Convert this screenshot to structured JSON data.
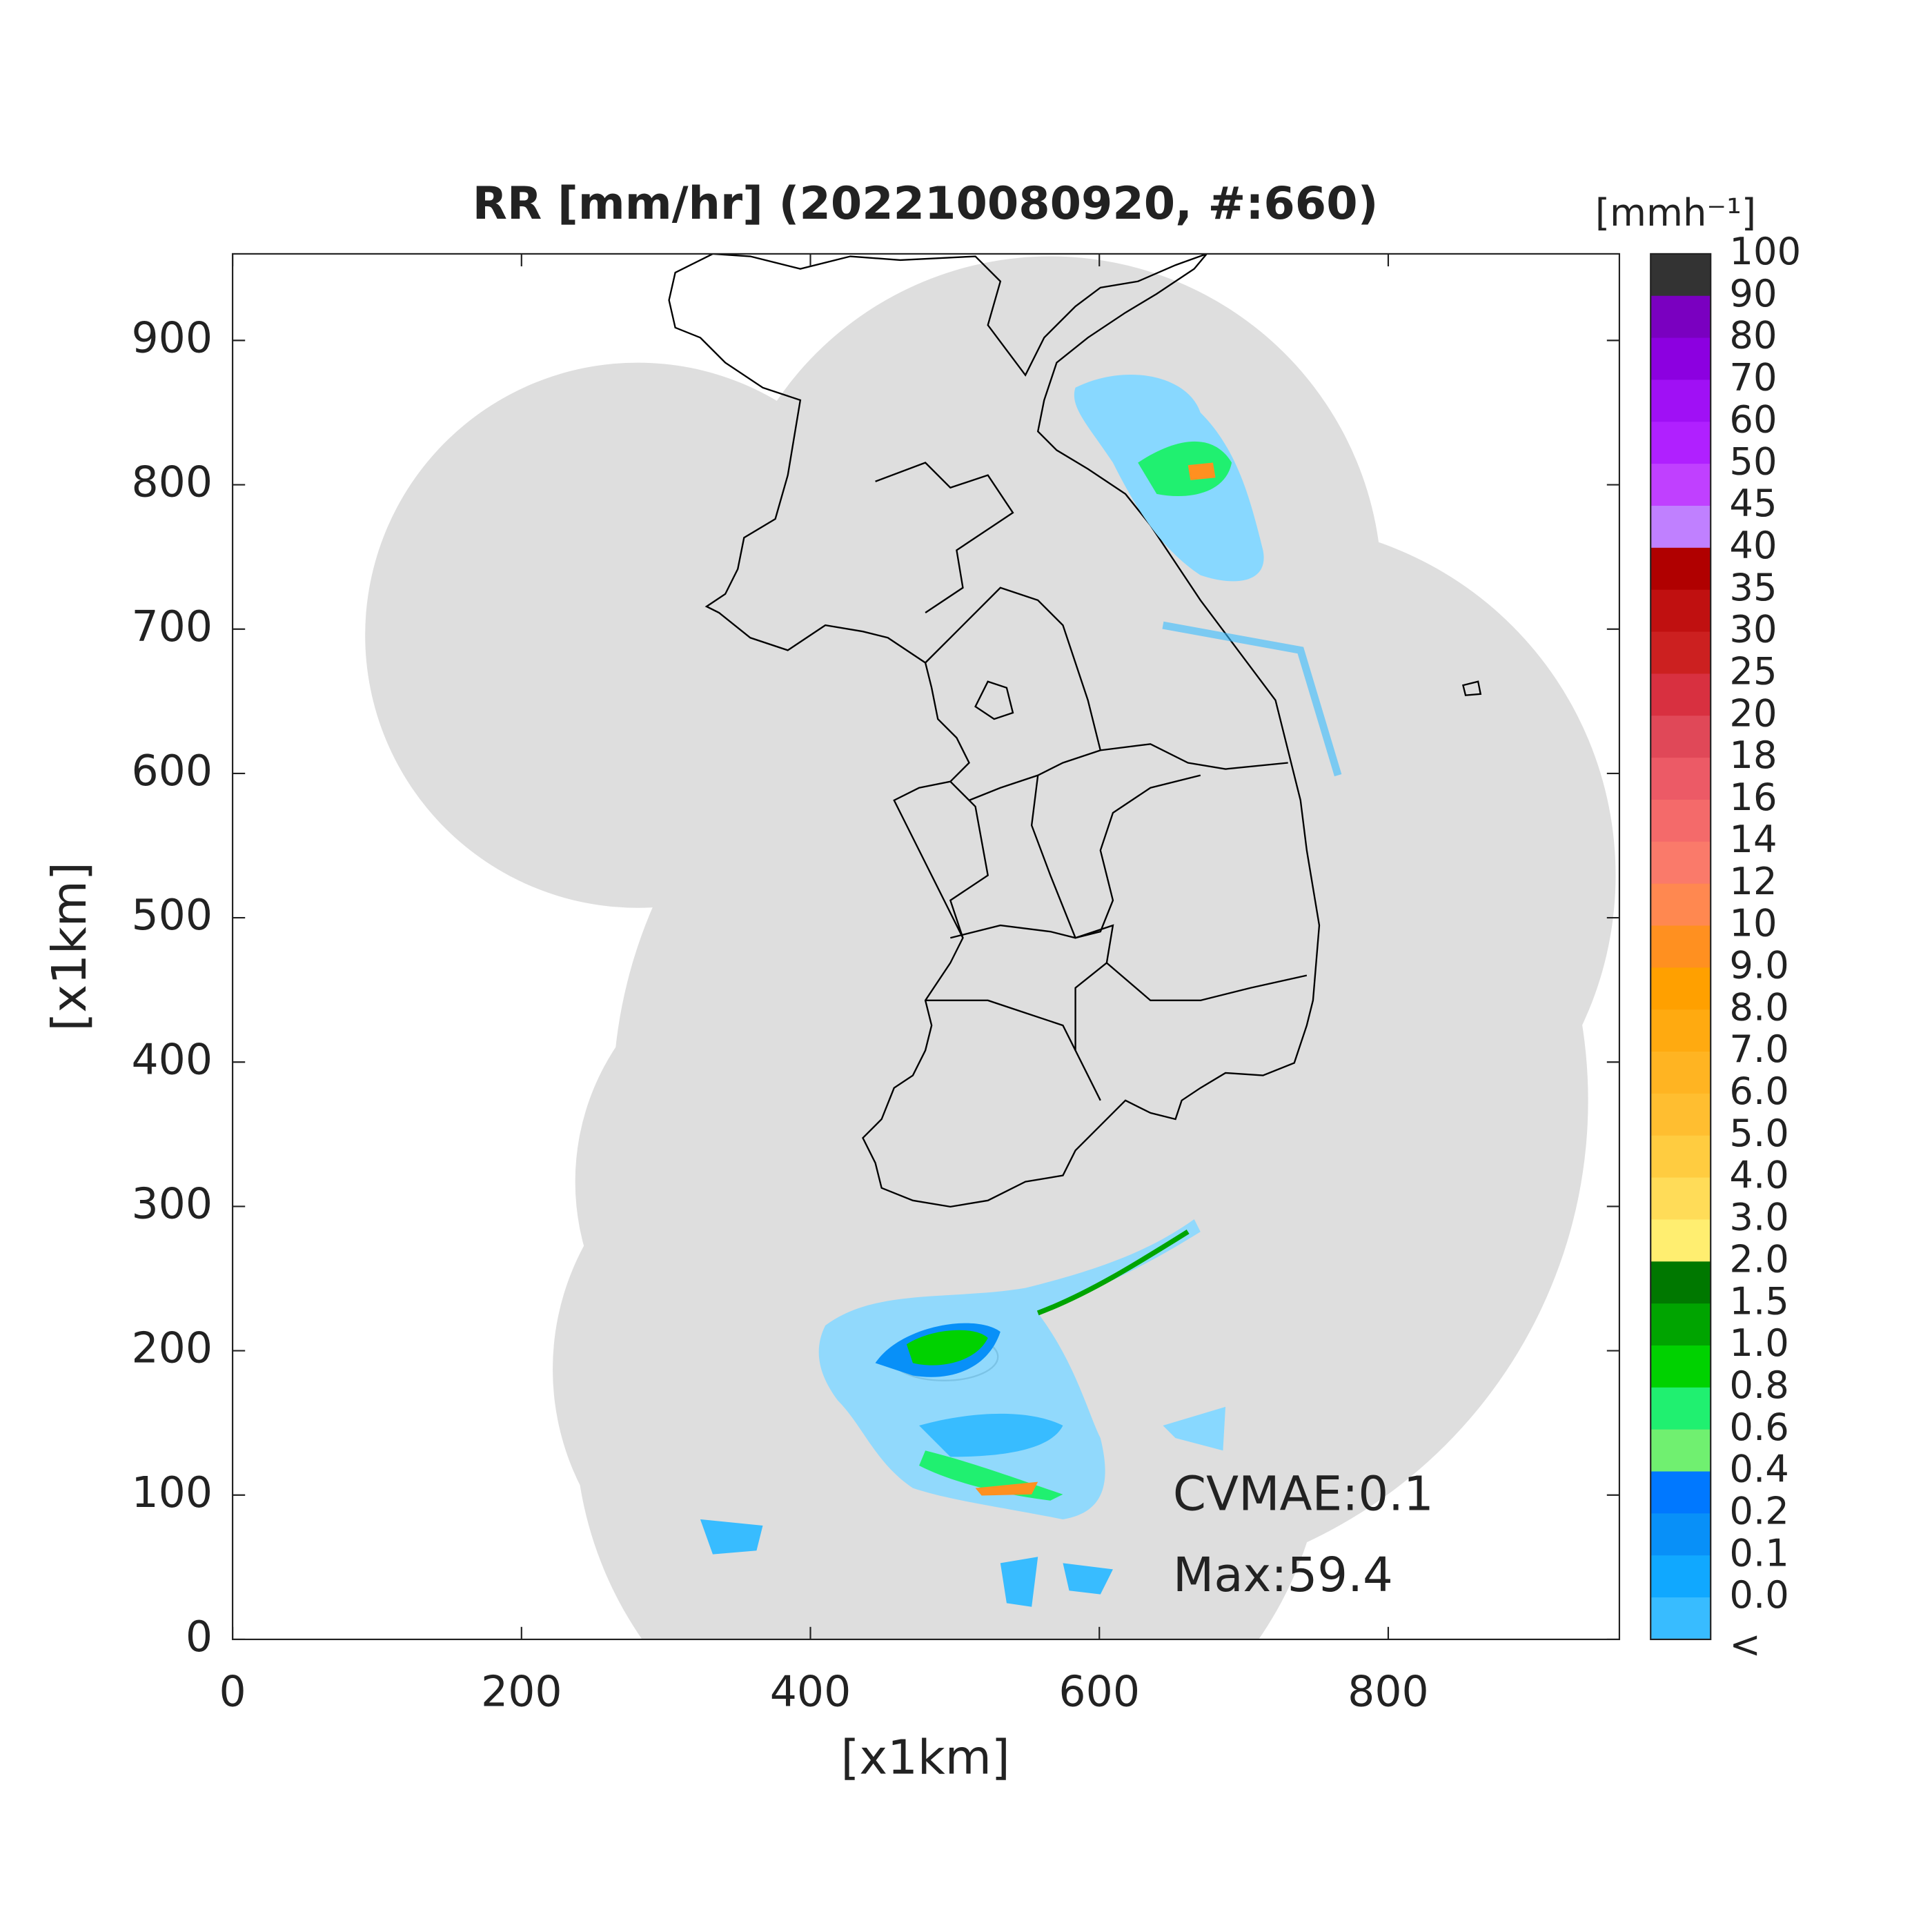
{
  "title": "RR [mm/hr] (202210080920, #:660)",
  "x_axis": {
    "label": "[x1km]",
    "lim": [
      0,
      960
    ],
    "ticks": [
      0,
      200,
      400,
      600,
      800
    ]
  },
  "y_axis": {
    "label": "[x1km]",
    "lim": [
      0,
      960
    ],
    "ticks": [
      0,
      100,
      200,
      300,
      400,
      500,
      600,
      700,
      800,
      900
    ]
  },
  "colorbar": {
    "unit_label": "[mmh⁻¹]",
    "labels": [
      "100",
      "90",
      "80",
      "70",
      "60",
      "50",
      "45",
      "40",
      "35",
      "30",
      "25",
      "20",
      "18",
      "16",
      "14",
      "12",
      "10",
      "9.0",
      "8.0",
      "7.0",
      "6.0",
      "5.0",
      "4.0",
      "3.0",
      "2.0",
      "1.5",
      "1.0",
      "0.8",
      "0.6",
      "0.4",
      "0.2",
      "0.1",
      "0.0",
      "<"
    ],
    "colors": [
      "#333333",
      "#7a00c0",
      "#8c00e0",
      "#a010f5",
      "#b020ff",
      "#c040ff",
      "#c080ff",
      "#b00000",
      "#c01010",
      "#cc2020",
      "#d83040",
      "#e04858",
      "#ec5a66",
      "#f46a6a",
      "#fa7a6a",
      "#ff8850",
      "#ff9020",
      "#ffa000",
      "#ffaa10",
      "#ffb422",
      "#ffbe30",
      "#ffcc40",
      "#ffdc58",
      "#ffee70",
      "#007800",
      "#00a400",
      "#00d200",
      "#20f070",
      "#70f070",
      "#0078ff",
      "#0890f8",
      "#10a8ff",
      "#38bcff",
      "#88d8ff",
      "#dddddd",
      "#ffffff"
    ]
  },
  "annotations": [
    "CVMAE:0.1",
    "Max:59.4"
  ]
}
